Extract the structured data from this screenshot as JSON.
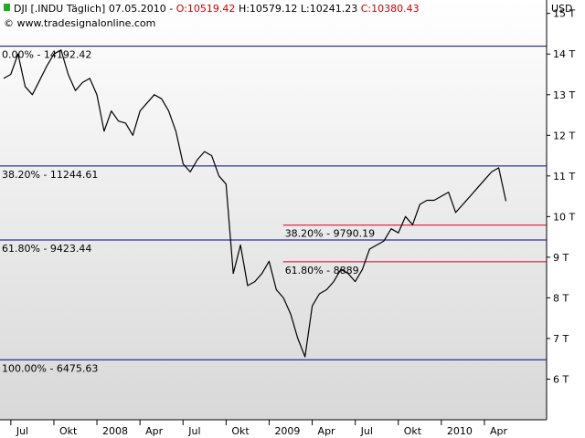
{
  "chart_data": {
    "type": "line",
    "header": [
      "DJI [.INDU  Täglich] 07.05.2010 -",
      "O:10519.42",
      "H:10579.12",
      "L:10241.23",
      "C:10380.43"
    ],
    "copyright": "© www.tradesignalonline.com",
    "y_axis_label": "USD",
    "color": "#000000",
    "categories": [
      null,
      "Jul",
      null,
      null,
      null,
      null,
      null,
      "Okt",
      null,
      null,
      null,
      null,
      null,
      "2008",
      null,
      null,
      null,
      null,
      null,
      "Apr",
      null,
      null,
      null,
      null,
      null,
      "Jul",
      null,
      null,
      null,
      null,
      null,
      "Okt",
      null,
      null,
      null,
      null,
      null,
      "2009",
      null,
      null,
      null,
      null,
      null,
      "Apr",
      null,
      null,
      null,
      null,
      null,
      "Jul",
      null,
      null,
      null,
      null,
      null,
      "Okt",
      null,
      null,
      null,
      null,
      null,
      "2010",
      null,
      null,
      null,
      null,
      null,
      "Apr",
      null,
      null,
      null
    ],
    "values": [
      13400,
      13500,
      14000,
      13200,
      13000,
      13350,
      13700,
      14000,
      14100,
      13500,
      13100,
      13300,
      13400,
      13000,
      12100,
      12600,
      12350,
      12300,
      12000,
      12600,
      12800,
      13000,
      12900,
      12600,
      12100,
      11300,
      11100,
      11400,
      11600,
      11500,
      11000,
      10800,
      8600,
      9300,
      8300,
      8400,
      8600,
      8900,
      8200,
      8000,
      7600,
      7000,
      6550,
      7800,
      8100,
      8200,
      8400,
      8700,
      8600,
      8400,
      8700,
      9200,
      9300,
      9400,
      9700,
      9600,
      10000,
      9800,
      10300,
      10400,
      10400,
      10500,
      10600,
      10100,
      10300,
      10500,
      10700,
      10900,
      11100,
      11200,
      10380
    ],
    "ylim": [
      5000,
      15330
    ],
    "yticks": [
      {
        "value": 6000,
        "label": "6 T"
      },
      {
        "value": 7000,
        "label": "7 T"
      },
      {
        "value": 8000,
        "label": "8 T"
      },
      {
        "value": 9000,
        "label": "9 T"
      },
      {
        "value": 10000,
        "label": "10 T"
      },
      {
        "value": 11000,
        "label": "11 T"
      },
      {
        "value": 12000,
        "label": "12 T"
      },
      {
        "value": 13000,
        "label": "13 T"
      },
      {
        "value": 14000,
        "label": "14 T"
      },
      {
        "value": 15000,
        "label": "15 T"
      }
    ],
    "retracement_levels": {
      "color": "#00008b",
      "levels": [
        {
          "value": 14192.42,
          "label": "0.00% - 14192.42"
        },
        {
          "value": 11244.61,
          "label": "38.20% - 11244.61"
        },
        {
          "value": 9423.44,
          "label": "61.80% - 9423.44"
        },
        {
          "value": 6475.63,
          "label": "100.00% - 6475.63"
        }
      ]
    },
    "recovery_levels": {
      "color": "#cc0033",
      "levels": [
        {
          "value": 9790.19,
          "label": "38.20% - 9790.19"
        },
        {
          "value": 8889,
          "label": "61.80% - 8889"
        }
      ]
    }
  }
}
